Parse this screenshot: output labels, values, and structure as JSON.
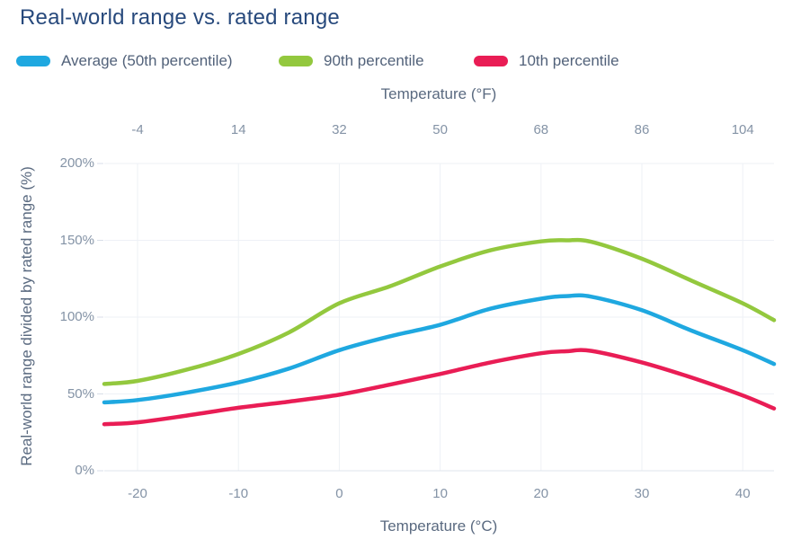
{
  "title": "Real-world range vs. rated range",
  "colors": {
    "title_text": "#27497c",
    "legend_text": "#52627a",
    "axis_title_text": "#5a6a80",
    "tick_label_text": "#8493a6",
    "gridline": "#eef1f6",
    "axis_line": "#dfe4ec",
    "tick_mark": "#d8dee8",
    "series_blue": "#1FA8E0",
    "series_green": "#93C83E",
    "series_red": "#E91D55"
  },
  "legend": [
    {
      "label": "Average (50th percentile)",
      "color": "#1FA8E0"
    },
    {
      "label": "90th percentile",
      "color": "#93C83E"
    },
    {
      "label": "10th percentile",
      "color": "#E91D55"
    }
  ],
  "chart_data": {
    "type": "line",
    "title": "Real-world range vs. rated range",
    "xlabel_top": "Temperature (°F)",
    "xlabel_bottom": "Temperature (°C)",
    "ylabel": "Real-world range divided by rated range (%)",
    "xlim_c": [
      -23.3,
      43.1
    ],
    "ylim": [
      0,
      200
    ],
    "grid": true,
    "legend_position": "top",
    "x_ticks_c": [
      -20,
      -10,
      0,
      10,
      20,
      30,
      40
    ],
    "x_tick_labels_c": [
      "-20",
      "-10",
      "0",
      "10",
      "20",
      "30",
      "40"
    ],
    "x_tick_labels_f": [
      "-4",
      "14",
      "32",
      "50",
      "68",
      "86",
      "104"
    ],
    "y_ticks": [
      0,
      50,
      100,
      150,
      200
    ],
    "y_tick_labels": [
      "0%",
      "50%",
      "100%",
      "150%",
      "200%"
    ],
    "x_c": [
      -23.3,
      -20,
      -15,
      -10,
      -5,
      0,
      5,
      10,
      15,
      20,
      22.5,
      25,
      30,
      35,
      40,
      43.1
    ],
    "series": [
      {
        "name": "Average (50th percentile)",
        "color": "#1FA8E0",
        "values": [
          44.5,
          46,
          51,
          57.5,
          66.5,
          78.5,
          87.5,
          95,
          105.5,
          112,
          113.7,
          113.3,
          104.5,
          91,
          78.5,
          69.5
        ]
      },
      {
        "name": "90th percentile",
        "color": "#93C83E",
        "values": [
          56.5,
          58.5,
          66,
          76,
          90,
          109,
          120,
          133,
          143.5,
          149.3,
          150,
          149,
          138,
          123.5,
          109,
          98
        ]
      },
      {
        "name": "10th percentile",
        "color": "#E91D55",
        "values": [
          30.3,
          31.5,
          36,
          41,
          45,
          49.5,
          56,
          63,
          70.5,
          76.5,
          77.8,
          78,
          70.5,
          60.5,
          49,
          40.5
        ]
      }
    ]
  }
}
